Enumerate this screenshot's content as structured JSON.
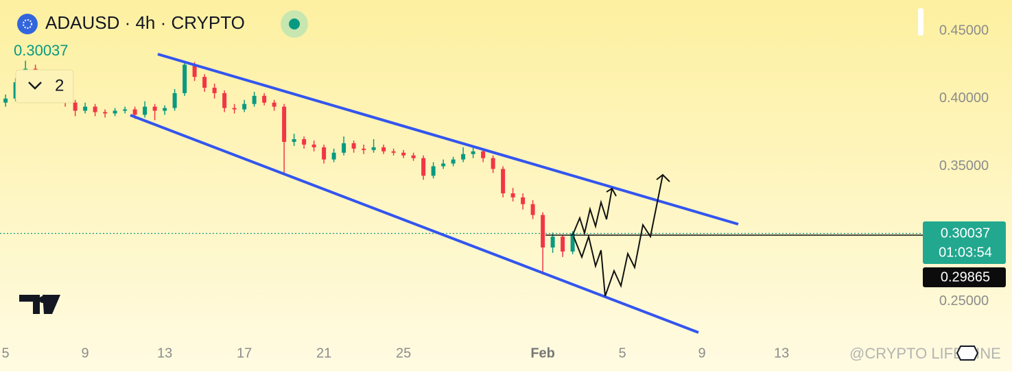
{
  "header": {
    "symbol": "ADAUSD · 4h · CRYPTO",
    "price": "0.30037",
    "indicators": 2
  },
  "chart_data": {
    "type": "candlestick",
    "x": [
      5,
      5.5,
      6,
      6.5,
      7,
      7.5,
      8,
      8.5,
      9,
      9.5,
      10,
      10.5,
      11,
      11.5,
      12,
      12.5,
      13,
      13.5,
      14,
      14.5,
      15,
      15.5,
      16,
      16.5,
      17,
      17.5,
      18,
      18.5,
      19,
      19.5,
      20,
      20.5,
      21,
      21.5,
      22,
      22.5,
      23,
      23.5,
      24,
      24.5,
      25,
      25.5,
      26,
      26.5,
      27,
      27.5,
      28,
      28.5,
      29,
      29.5,
      30,
      30.5,
      31,
      31.5,
      32,
      32.5,
      33,
      33.5
    ],
    "open": [
      0.397,
      0.4,
      0.412,
      0.422,
      0.418,
      0.416,
      0.405,
      0.397,
      0.391,
      0.394,
      0.39,
      0.389,
      0.391,
      0.392,
      0.388,
      0.394,
      0.391,
      0.393,
      0.404,
      0.425,
      0.416,
      0.408,
      0.404,
      0.393,
      0.392,
      0.396,
      0.402,
      0.397,
      0.394,
      0.368,
      0.37,
      0.366,
      0.364,
      0.355,
      0.36,
      0.367,
      0.363,
      0.362,
      0.364,
      0.361,
      0.36,
      0.358,
      0.356,
      0.343,
      0.35,
      0.352,
      0.355,
      0.359,
      0.361,
      0.356,
      0.348,
      0.33,
      0.327,
      0.322,
      0.314,
      0.29,
      0.298,
      0.287
    ],
    "high": [
      0.403,
      0.415,
      0.428,
      0.425,
      0.421,
      0.418,
      0.407,
      0.399,
      0.397,
      0.396,
      0.392,
      0.393,
      0.394,
      0.394,
      0.398,
      0.396,
      0.395,
      0.407,
      0.428,
      0.427,
      0.418,
      0.411,
      0.406,
      0.396,
      0.399,
      0.405,
      0.404,
      0.399,
      0.396,
      0.374,
      0.372,
      0.369,
      0.366,
      0.363,
      0.372,
      0.369,
      0.366,
      0.37,
      0.366,
      0.363,
      0.362,
      0.36,
      0.358,
      0.353,
      0.355,
      0.357,
      0.364,
      0.364,
      0.363,
      0.358,
      0.35,
      0.334,
      0.33,
      0.325,
      0.316,
      0.301,
      0.299,
      0.302
    ],
    "low": [
      0.394,
      0.398,
      0.41,
      0.415,
      0.412,
      0.402,
      0.394,
      0.387,
      0.389,
      0.387,
      0.386,
      0.387,
      0.389,
      0.385,
      0.386,
      0.384,
      0.388,
      0.391,
      0.402,
      0.413,
      0.405,
      0.4,
      0.39,
      0.389,
      0.39,
      0.394,
      0.395,
      0.391,
      0.345,
      0.365,
      0.363,
      0.361,
      0.352,
      0.353,
      0.358,
      0.36,
      0.359,
      0.36,
      0.359,
      0.358,
      0.356,
      0.354,
      0.34,
      0.341,
      0.348,
      0.35,
      0.353,
      0.356,
      0.353,
      0.345,
      0.327,
      0.324,
      0.318,
      0.311,
      0.27,
      0.286,
      0.283,
      0.285
    ],
    "close": [
      0.4,
      0.412,
      0.422,
      0.418,
      0.416,
      0.405,
      0.397,
      0.391,
      0.394,
      0.39,
      0.389,
      0.391,
      0.392,
      0.388,
      0.394,
      0.391,
      0.393,
      0.404,
      0.425,
      0.416,
      0.408,
      0.404,
      0.393,
      0.392,
      0.396,
      0.402,
      0.397,
      0.394,
      0.368,
      0.37,
      0.366,
      0.364,
      0.355,
      0.36,
      0.367,
      0.363,
      0.362,
      0.364,
      0.361,
      0.36,
      0.358,
      0.356,
      0.343,
      0.35,
      0.352,
      0.355,
      0.359,
      0.361,
      0.356,
      0.348,
      0.33,
      0.327,
      0.322,
      0.314,
      0.29,
      0.298,
      0.287,
      0.30037
    ],
    "up_color": "#089981",
    "down_color": "#f23645",
    "ylim": [
      0.2196,
      0.4728
    ],
    "yticks": [
      {
        "value": 0.25,
        "label": "0.25000"
      },
      {
        "value": 0.35,
        "label": "0.35000"
      },
      {
        "value": 0.4,
        "label": "0.40000"
      },
      {
        "value": 0.45,
        "label": "0.45000"
      }
    ],
    "xlim": [
      4.72,
      51.1
    ],
    "xticks": [
      5,
      9,
      13,
      17,
      21,
      25,
      {
        "value": 32,
        "label": "Feb"
      },
      {
        "value": 36,
        "label": "5"
      },
      {
        "value": 40,
        "label": "9"
      },
      {
        "value": 44,
        "label": "13"
      }
    ],
    "last_price": 0.30037,
    "countdown": "01:03:54",
    "other_price": 0.29865,
    "watermark": "@CRYPTO LIFEMINE"
  }
}
